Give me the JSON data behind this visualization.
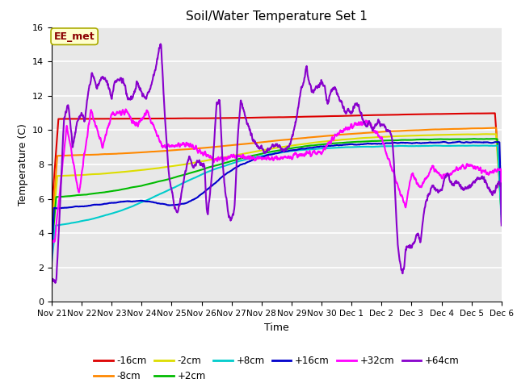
{
  "title": "Soil/Water Temperature Set 1",
  "xlabel": "Time",
  "ylabel": "Temperature (C)",
  "ylim": [
    0,
    16
  ],
  "yticks": [
    0,
    2,
    4,
    6,
    8,
    10,
    12,
    14,
    16
  ],
  "background_color": "#e8e8e8",
  "annotation_text": "EE_met",
  "annotation_color": "#8b0000",
  "annotation_bg": "#ffffcc",
  "series": {
    "-16cm": {
      "color": "#dd0000",
      "lw": 1.5
    },
    "-8cm": {
      "color": "#ff8800",
      "lw": 1.5
    },
    "-2cm": {
      "color": "#dddd00",
      "lw": 1.5
    },
    "+2cm": {
      "color": "#00bb00",
      "lw": 1.5
    },
    "+8cm": {
      "color": "#00cccc",
      "lw": 1.5
    },
    "+16cm": {
      "color": "#0000cc",
      "lw": 1.5
    },
    "+32cm": {
      "color": "#ff00ff",
      "lw": 1.5
    },
    "+64cm": {
      "color": "#8800cc",
      "lw": 1.5
    }
  },
  "xtick_labels": [
    "Nov 21",
    "Nov 22",
    "Nov 23",
    "Nov 24",
    "Nov 25",
    "Nov 26",
    "Nov 27",
    "Nov 28",
    "Nov 29",
    "Nov 30",
    "Dec 1",
    "Dec 2",
    "Dec 3",
    "Dec 4",
    "Dec 5",
    "Dec 6"
  ],
  "num_days": 16
}
